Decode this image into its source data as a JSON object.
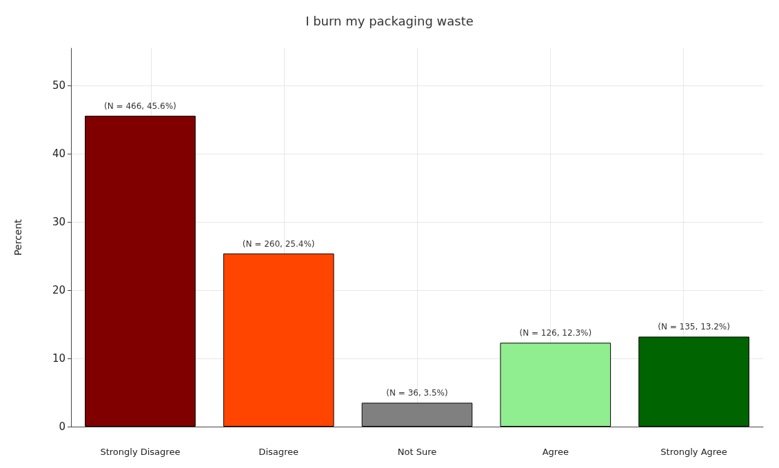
{
  "chart_data": {
    "type": "bar",
    "title": "I burn my packaging waste",
    "ylabel": "Percent",
    "categories": [
      "Strongly Disagree",
      "Disagree",
      "Not Sure",
      "Agree",
      "Strongly Agree"
    ],
    "values": [
      45.6,
      25.4,
      3.5,
      12.3,
      13.2
    ],
    "colors": [
      "#800000",
      "#ff4500",
      "#808080",
      "#90ee90",
      "#006400"
    ],
    "value_labels": [
      "(N = 466, 45.6%)",
      "(N = 260, 25.4%)",
      "(N = 36, 3.5%)",
      "(N = 126, 12.3%)",
      "(N = 135, 13.2%)"
    ],
    "ylim": [
      0,
      55.5
    ],
    "yticks": [
      0,
      10,
      20,
      30,
      40,
      50
    ],
    "grid": true
  }
}
